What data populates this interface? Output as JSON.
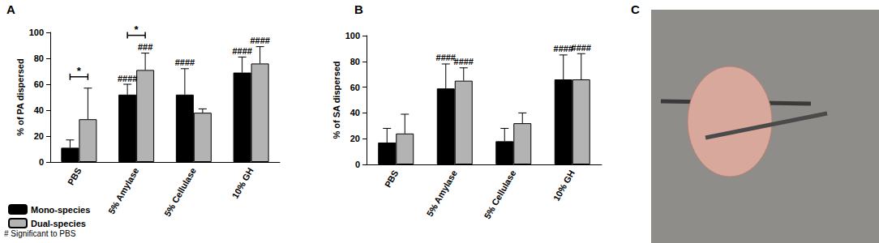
{
  "chart_data": [
    {
      "type": "bar",
      "panel": "A",
      "ylabel": "% of PA dispersed",
      "categories": [
        "PBS",
        "5% Amylase",
        "5% Cellulase",
        "10% GH"
      ],
      "series": [
        {
          "name": "Mono-species",
          "color": "#000000",
          "values": [
            11,
            52,
            52,
            69
          ],
          "errors": [
            6,
            8,
            20,
            12
          ]
        },
        {
          "name": "Dual-species",
          "color": "#b3b3b3",
          "values": [
            33,
            71,
            38,
            76
          ],
          "errors": [
            24,
            13,
            3,
            13
          ]
        }
      ],
      "ylim": [
        0,
        100
      ],
      "yticks": [
        0,
        20,
        40,
        60,
        80,
        100
      ],
      "grid": false,
      "legend": "bottom",
      "legend_note": "# Significant to PBS",
      "significance_marks": [
        {
          "category": "5% Amylase",
          "series": "Mono-species",
          "text": "####"
        },
        {
          "category": "5% Amylase",
          "series": "Dual-species",
          "text": "###"
        },
        {
          "category": "5% Cellulase",
          "series": "Mono-species",
          "text": "####"
        },
        {
          "category": "10% GH",
          "series": "Mono-species",
          "text": "####"
        },
        {
          "category": "10% GH",
          "series": "Dual-species",
          "text": "####"
        }
      ],
      "significance_brackets": [
        {
          "category": "PBS",
          "text": "*"
        },
        {
          "category": "5% Amylase",
          "text": "*"
        }
      ]
    },
    {
      "type": "bar",
      "panel": "B",
      "ylabel": "% of SA dispersed",
      "categories": [
        "PBS",
        "5% Amylase",
        "5% Cellulase",
        "10% GH"
      ],
      "series": [
        {
          "name": "Mono-species",
          "color": "#000000",
          "values": [
            17,
            59,
            18,
            66
          ],
          "errors": [
            11,
            19,
            10,
            19
          ]
        },
        {
          "name": "Dual-species",
          "color": "#b3b3b3",
          "values": [
            24,
            65,
            32,
            66
          ],
          "errors": [
            15,
            10,
            8,
            20
          ]
        }
      ],
      "ylim": [
        0,
        100
      ],
      "yticks": [
        0,
        20,
        40,
        60,
        80,
        100
      ],
      "grid": false,
      "significance_marks": [
        {
          "category": "5% Amylase",
          "series": "Mono-species",
          "text": "####"
        },
        {
          "category": "5% Amylase",
          "series": "Dual-species",
          "text": "####"
        },
        {
          "category": "10% GH",
          "series": "Mono-species",
          "text": "####"
        },
        {
          "category": "10% GH",
          "series": "Dual-species",
          "text": "####"
        }
      ],
      "significance_brackets": []
    }
  ],
  "photo": {
    "panel": "C"
  }
}
